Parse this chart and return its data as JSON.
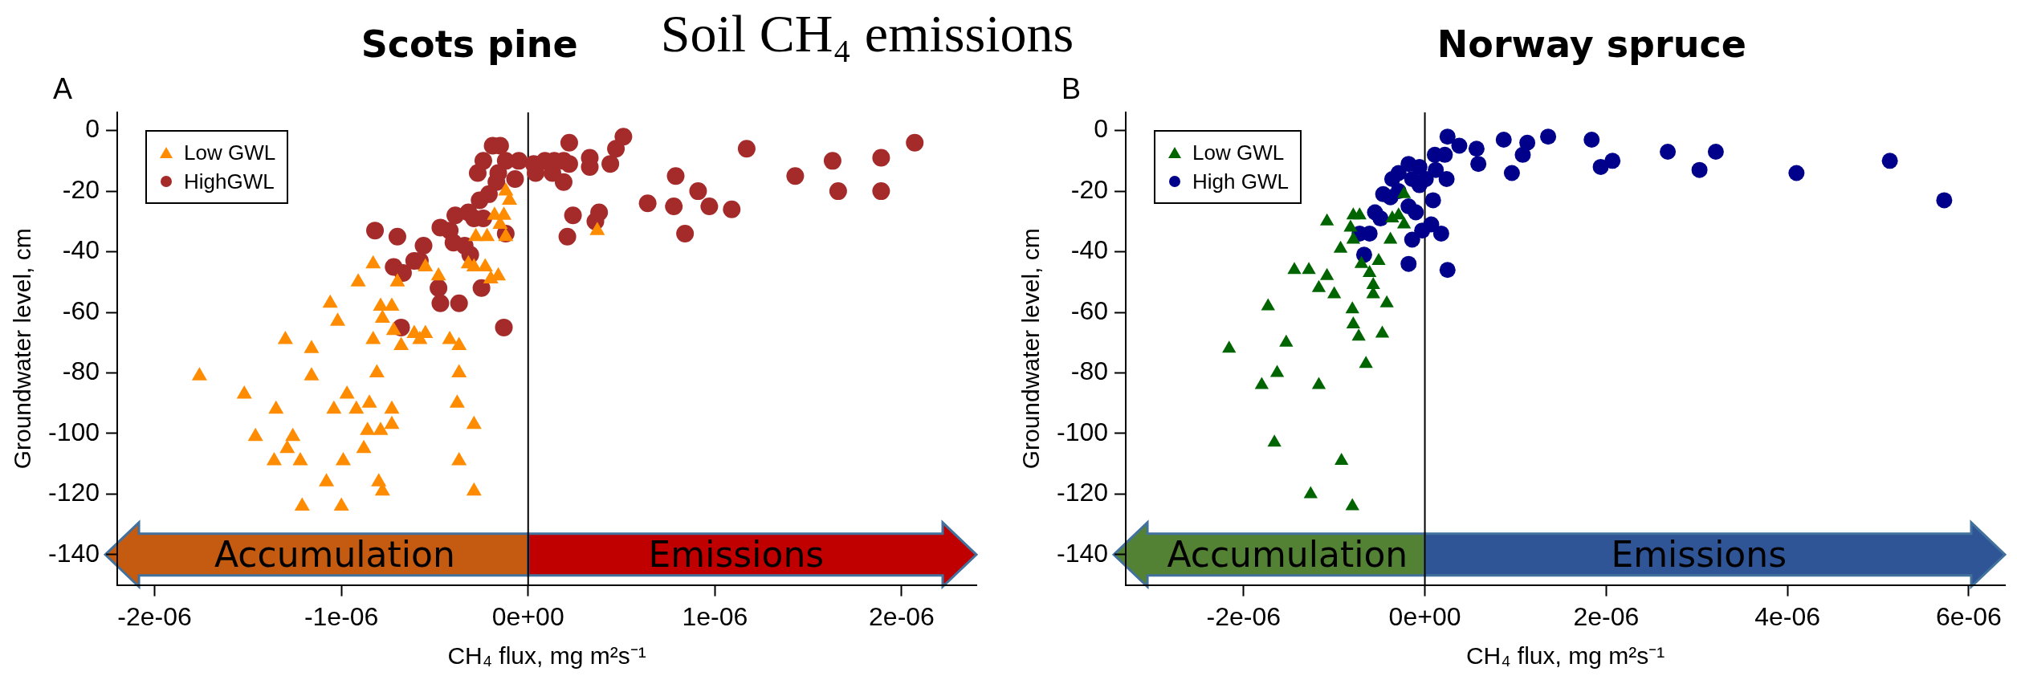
{
  "chart_data": [
    {
      "type": "scatter",
      "title": "Scots pine",
      "xlabel": "CH₄ flux, mg m²s⁻¹",
      "ylabel": "Groundwater level, cm",
      "annotations": [
        "A",
        "Accumulation",
        "Emissions",
        "Soil CH₄ emissions"
      ],
      "xlim": [
        -2.2e-06,
        2.4e-06
      ],
      "xticks": [
        {
          "value": -2e-06,
          "label": "-2e-06"
        },
        {
          "value": -1e-06,
          "label": "-1e-06"
        },
        {
          "value": 0,
          "label": "0e+00"
        },
        {
          "value": 1e-06,
          "label": "1e-06"
        },
        {
          "value": 2e-06,
          "label": "2e-06"
        }
      ],
      "ylim": [
        -150,
        6
      ],
      "yticks": [
        0,
        -20,
        -40,
        -60,
        -80,
        -100,
        -120,
        -140
      ],
      "grid": false,
      "legend": "top left",
      "ref_lines": [
        {
          "axis": "x",
          "value": 0,
          "color": "#000000"
        }
      ],
      "series": [
        {
          "name": "Low GWL",
          "color": "#ff8c00",
          "marker": "triangle",
          "x": [
            -1.76e-06,
            -1.52e-06,
            -1.46e-06,
            -1.35e-06,
            -1.3e-06,
            -1.26e-06,
            -1.29e-06,
            -1.36e-06,
            -1.22e-06,
            -1.21e-06,
            -1.16e-06,
            -1.16e-06,
            -1.08e-06,
            -1e-06,
            -9.9e-07,
            -1.04e-06,
            -9.7e-07,
            -9.2e-07,
            -1.06e-06,
            -1.02e-06,
            -9.1e-07,
            -8.3e-07,
            -8.8e-07,
            -8.6e-07,
            -7.9e-07,
            -8.5e-07,
            -8e-07,
            -7.8e-07,
            -7.3e-07,
            -7.3e-07,
            -8.3e-07,
            -8.1e-07,
            -7.9e-07,
            -7.8e-07,
            -7.3e-07,
            -7.2e-07,
            -6.8e-07,
            -7e-07,
            -6.1e-07,
            -5.8e-07,
            -5.5e-07,
            -5.5e-07,
            -4.8e-07,
            -4.2e-07,
            -3.7e-07,
            -3.7e-07,
            -3.8e-07,
            -3.7e-07,
            -2.9e-07,
            -2.9e-07,
            -3.2e-07,
            -2.9e-07,
            -2.3e-07,
            -2e-07,
            -1.6e-07,
            -2.2e-07,
            -2.8e-07,
            -1.8e-07,
            -1.3e-07,
            -1.5e-07,
            -1.2e-07,
            -1.2e-07,
            -1e-07,
            3.7e-07
          ],
          "values": [
            -81,
            -87,
            -101,
            -92,
            -69,
            -101,
            -105,
            -109,
            -109,
            -124,
            -72,
            -81,
            -116,
            -124,
            -109,
            -92,
            -87,
            -92,
            -57,
            -63,
            -50,
            -44,
            -105,
            -99,
            -99,
            -90,
            -116,
            -119,
            -92,
            -97,
            -69,
            -80,
            -58,
            -62,
            -58,
            -66,
            -71,
            -50,
            -67,
            -69,
            -67,
            -45,
            -48,
            -69,
            -71,
            -80,
            -90,
            -109,
            -97,
            -119,
            -44,
            -45,
            -45,
            -49,
            -48,
            -35,
            -35,
            -28,
            -28,
            -31,
            -35,
            -20,
            -23,
            -33
          ]
        },
        {
          "name": "HighGWL",
          "color": "#a52a2a",
          "marker": "circle",
          "x": [
            -8.2e-07,
            -7e-07,
            -5.6e-07,
            -7.2e-07,
            -6.7e-07,
            -6.1e-07,
            -5.8e-07,
            -4.8e-07,
            -4.7e-07,
            -3.7e-07,
            -6.8e-07,
            -1.3e-07,
            -2.5e-07,
            -4.7e-07,
            -4.2e-07,
            -4e-07,
            -3.4e-07,
            -3.1e-07,
            -3.9e-07,
            -3.2e-07,
            -2.9e-07,
            -2.4e-07,
            -2.6e-07,
            -2.1e-07,
            -1.7e-07,
            -1.2e-07,
            -2.7e-07,
            -2.4e-07,
            -1.9e-07,
            -1.5e-07,
            -1.6e-07,
            -1.2e-07,
            -7e-08,
            -5e-08,
            3e-08,
            4e-08,
            9e-08,
            1.4e-07,
            1.3e-07,
            1.9e-07,
            1.9e-07,
            2.2e-07,
            2.2e-07,
            2.4e-07,
            2.1e-07,
            3.3e-07,
            3.3e-07,
            4.4e-07,
            4.7e-07,
            5.1e-07,
            3.8e-07,
            3.6e-07,
            6.4e-07,
            7.8e-07,
            7.9e-07,
            9.1e-07,
            9.7e-07,
            1.09e-06,
            8.4e-07,
            1.17e-06,
            1.43e-06,
            1.63e-06,
            1.66e-06,
            1.89e-06,
            1.89e-06,
            2.07e-06
          ],
          "values": [
            -33,
            -35,
            -38,
            -45,
            -47,
            -43,
            -43,
            -52,
            -57,
            -57,
            -65,
            -65,
            -52,
            -32,
            -33,
            -37,
            -38,
            -41,
            -28,
            -27,
            -29,
            -29,
            -23,
            -21,
            -17,
            -34,
            -14,
            -10,
            -5,
            -5,
            -14,
            -10,
            -16,
            -10,
            -11,
            -14,
            -10,
            -10,
            -14,
            -10,
            -17,
            -4,
            -11,
            -28,
            -35,
            -9,
            -12,
            -11,
            -6,
            -2,
            -27,
            -30,
            -24,
            -25,
            -15,
            -20,
            -25,
            -26,
            -34,
            -6,
            -15,
            -10,
            -20,
            -9,
            -20,
            -4
          ]
        }
      ]
    },
    {
      "type": "scatter",
      "title": "Norway spruce",
      "xlabel": "CH₄ flux, mg m²s⁻¹",
      "ylabel": "Groundwater level, cm",
      "annotations": [
        "B",
        "Accumulation",
        "Emissions"
      ],
      "xlim": [
        -3.3e-06,
        6.4e-06
      ],
      "xticks": [
        {
          "value": -2e-06,
          "label": "-2e-06"
        },
        {
          "value": 0,
          "label": "0e+00"
        },
        {
          "value": 2e-06,
          "label": "2e-06"
        },
        {
          "value": 4e-06,
          "label": "4e-06"
        },
        {
          "value": 6e-06,
          "label": "6e-06"
        }
      ],
      "ylim": [
        -150,
        6
      ],
      "yticks": [
        0,
        -20,
        -40,
        -60,
        -80,
        -100,
        -120,
        -140
      ],
      "grid": false,
      "legend": "top left",
      "ref_lines": [
        {
          "axis": "x",
          "value": 0,
          "color": "#000000"
        }
      ],
      "series": [
        {
          "name": "Low GWL",
          "color": "#006400",
          "marker": "triangle",
          "x": [
            -2.16e-06,
            -1.73e-06,
            -1.53e-06,
            -1.63e-06,
            -1.8e-06,
            -1.66e-06,
            -1.17e-06,
            -9.2e-07,
            -1.26e-06,
            -8e-07,
            -1.44e-06,
            -1.28e-06,
            -1.08e-06,
            -1.17e-06,
            -1e-06,
            -1.08e-06,
            -9.3e-07,
            -8e-07,
            -7.9e-07,
            -7.3e-07,
            -6.5e-07,
            -4.7e-07,
            -4.2e-07,
            -5.7e-07,
            -5.7e-07,
            -6.1e-07,
            -7e-07,
            -5.1e-07,
            -7.9e-07,
            -8.2e-07,
            -7.9e-07,
            -7.2e-07,
            -3.8e-07,
            -3.6e-07,
            -2.9e-07,
            -2.3e-07,
            -2.3e-07
          ],
          "values": [
            -72,
            -58,
            -70,
            -80,
            -84,
            -103,
            -84,
            -109,
            -120,
            -124,
            -46,
            -46,
            -48,
            -52,
            -54,
            -30,
            -39,
            -59,
            -64,
            -68,
            -77,
            -67,
            -57,
            -54,
            -51,
            -47,
            -44,
            -43,
            -36,
            -32,
            -28,
            -28,
            -36,
            -29,
            -28,
            -31,
            -21
          ]
        },
        {
          "name": "High GWL",
          "color": "#00008b",
          "marker": "circle",
          "x": [
            -6.7e-07,
            -7.2e-07,
            -6.1e-07,
            -5.5e-07,
            -4.9e-07,
            -4.6e-07,
            -3.6e-07,
            -2.9e-07,
            -1.8e-07,
            -6e-08,
            -3.8e-07,
            -2.9e-07,
            -1.4e-07,
            -6e-08,
            -1.8e-07,
            -1e-07,
            -1.4e-07,
            -3e-08,
            -1.8e-07,
            9e-08,
            7e-08,
            1.8e-07,
            2.5e-07,
            1.1e-07,
            2.2e-07,
            1e-08,
            1.2e-07,
            2.5e-07,
            2.4e-07,
            3.8e-07,
            5.7e-07,
            5.9e-07,
            8.7e-07,
            9.6e-07,
            1.08e-06,
            1.13e-06,
            1.36e-06,
            1.84e-06,
            1.94e-06,
            2.07e-06,
            2.68e-06,
            3.03e-06,
            3.21e-06,
            4.1e-06,
            5.13e-06,
            5.73e-06
          ],
          "values": [
            -41,
            -34,
            -34,
            -27,
            -29,
            -21,
            -16,
            -14,
            -11,
            -12,
            -22,
            -20,
            -16,
            -18,
            -25,
            -27,
            -36,
            -33,
            -44,
            -23,
            -31,
            -34,
            -46,
            -8,
            -8,
            -16,
            -13,
            -2,
            -16,
            -5,
            -6,
            -11,
            -3,
            -14,
            -8,
            -4,
            -2,
            -3,
            -12,
            -10,
            -7,
            -13,
            -7,
            -14,
            -10,
            -23
          ]
        }
      ]
    }
  ]
}
